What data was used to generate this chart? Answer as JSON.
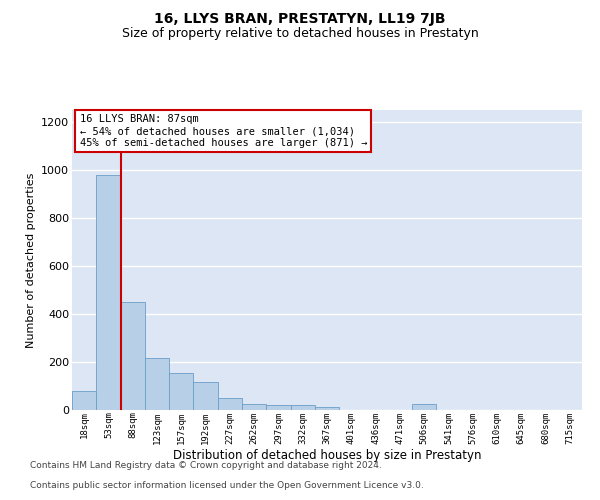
{
  "title": "16, LLYS BRAN, PRESTATYN, LL19 7JB",
  "subtitle": "Size of property relative to detached houses in Prestatyn",
  "xlabel": "Distribution of detached houses by size in Prestatyn",
  "ylabel": "Number of detached properties",
  "categories": [
    "18sqm",
    "53sqm",
    "88sqm",
    "123sqm",
    "157sqm",
    "192sqm",
    "227sqm",
    "262sqm",
    "297sqm",
    "332sqm",
    "367sqm",
    "401sqm",
    "436sqm",
    "471sqm",
    "506sqm",
    "541sqm",
    "576sqm",
    "610sqm",
    "645sqm",
    "680sqm",
    "715sqm"
  ],
  "values": [
    80,
    980,
    450,
    215,
    155,
    115,
    48,
    25,
    22,
    20,
    12,
    0,
    0,
    0,
    25,
    0,
    0,
    0,
    0,
    0,
    0
  ],
  "bar_color": "#b8cfe8",
  "bar_edge_color": "#6b9ec8",
  "highlight_line_color": "#cc0000",
  "annotation_text": "16 LLYS BRAN: 87sqm\n← 54% of detached houses are smaller (1,034)\n45% of semi-detached houses are larger (871) →",
  "annotation_box_color": "#ffffff",
  "annotation_box_edge": "#cc0000",
  "ylim": [
    0,
    1250
  ],
  "yticks": [
    0,
    200,
    400,
    600,
    800,
    1000,
    1200
  ],
  "background_color": "#dce6f5",
  "grid_color": "#ffffff",
  "footnote1": "Contains HM Land Registry data © Crown copyright and database right 2024.",
  "footnote2": "Contains public sector information licensed under the Open Government Licence v3.0.",
  "title_fontsize": 10,
  "subtitle_fontsize": 9,
  "annotation_fontsize": 7.5,
  "footnote_fontsize": 6.5,
  "ylabel_fontsize": 8,
  "xlabel_fontsize": 8.5
}
